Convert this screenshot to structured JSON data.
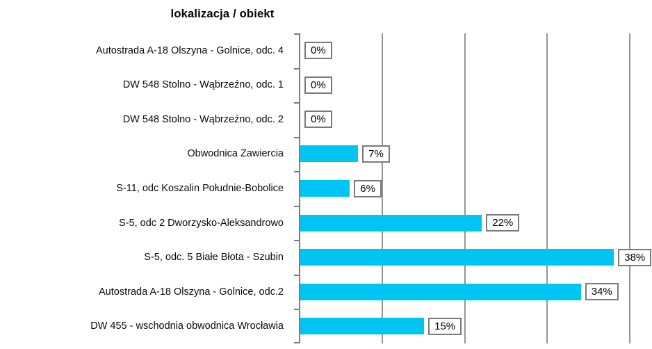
{
  "chart_data": {
    "type": "bar",
    "orientation": "horizontal",
    "title": "lokalizacja / obiekt",
    "categories": [
      "Autostrada A-18 Olszyna - Golnice, odc. 4",
      "DW 548 Stolno - Wąbrzeźno, odc. 1",
      "DW 548 Stolno - Wąbrzeźno, odc. 2",
      "Obwodnica Zawiercia",
      "S-11, odc Koszalin Południe-Bobolice",
      "S-5, odc 2 Dworzysko-Aleksandrowo",
      "S-5, odc. 5 Białe Błota - Szubin",
      "Autostrada A-18 Olszyna - Golnice, odc.2",
      "DW 455 - wschodnia obwodnica Wrocławia"
    ],
    "values": [
      0,
      0,
      0,
      7,
      6,
      22,
      38,
      34,
      15
    ],
    "value_labels": [
      "0%",
      "0%",
      "0%",
      "7%",
      "6%",
      "22%",
      "38%",
      "34%",
      "15%"
    ],
    "xlabel": "",
    "ylabel": "",
    "xlim": [
      0,
      40
    ],
    "gridline_values": [
      10,
      20,
      30,
      40
    ],
    "grid_on": true,
    "legend": "none",
    "bar_color": "#00c5f2",
    "grid_color": "#7d7d7d",
    "value_box_border_color": "#7a7a7a",
    "text_color": "#000000"
  }
}
